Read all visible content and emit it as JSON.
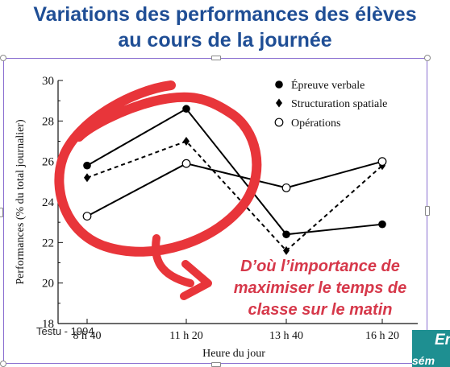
{
  "slide": {
    "title_line1": "Variations des performances des élèves",
    "title_line2": "au cours de la journée",
    "annotation_line1": "D’où l’importance de",
    "annotation_line2": "maximiser le temps de",
    "annotation_line3": "classe sur le matin",
    "source": "Testu - 1994",
    "teal_box_text": "En",
    "teal_box_sub": "sém",
    "colors": {
      "title": "#1f4e95",
      "annotation": "#d6384a",
      "circle_marker": "#e8353a",
      "teal_box": "#1e8f91",
      "selection_frame": "#8a6fd0"
    }
  },
  "chart_data": {
    "type": "line",
    "title": "",
    "xlabel": "Heure du jour",
    "ylabel": "Performances (% du total journalier)",
    "categories": [
      "8 h 40",
      "11 h 20",
      "13 h 40",
      "16 h 20"
    ],
    "ylim": [
      18,
      30
    ],
    "yticks": [
      18,
      20,
      22,
      24,
      26,
      28,
      30
    ],
    "grid": false,
    "legend_position": "top-right",
    "series": [
      {
        "name": "Épreuve verbale",
        "marker": "filled-circle",
        "line": "solid",
        "values": [
          25.8,
          28.6,
          22.4,
          22.9
        ]
      },
      {
        "name": "Structuration spatiale",
        "marker": "filled-diamond",
        "line": "dashed",
        "values": [
          25.2,
          27.0,
          21.6,
          25.8
        ]
      },
      {
        "name": "Opérations",
        "marker": "open-circle",
        "line": "solid",
        "values": [
          23.3,
          25.9,
          24.7,
          26.0
        ]
      }
    ]
  }
}
